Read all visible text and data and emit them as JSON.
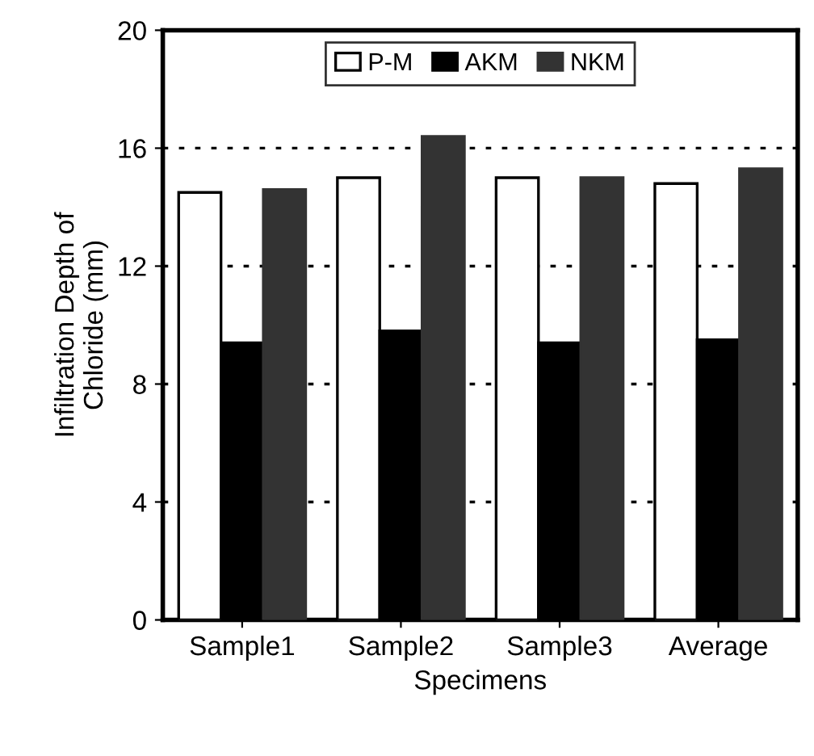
{
  "chart_data": {
    "type": "bar",
    "xlabel": "Specimens",
    "ylabel": "Infiltration Depth of\nChloride (mm)",
    "categories": [
      "Sample1",
      "Sample2",
      "Sample3",
      "Average"
    ],
    "series": [
      {
        "name": "P-M",
        "color": "#ffffff",
        "values": [
          14.5,
          15.0,
          15.0,
          14.8
        ]
      },
      {
        "name": "AKM",
        "color": "#000000",
        "values": [
          9.4,
          9.8,
          9.4,
          9.5
        ]
      },
      {
        "name": "NKM",
        "color": "#333333",
        "values": [
          14.6,
          16.4,
          15.0,
          15.3
        ]
      }
    ],
    "ylim": [
      0,
      20
    ],
    "yticks": [
      0,
      4,
      8,
      12,
      16,
      20
    ],
    "grid": "y",
    "legend": "top"
  }
}
